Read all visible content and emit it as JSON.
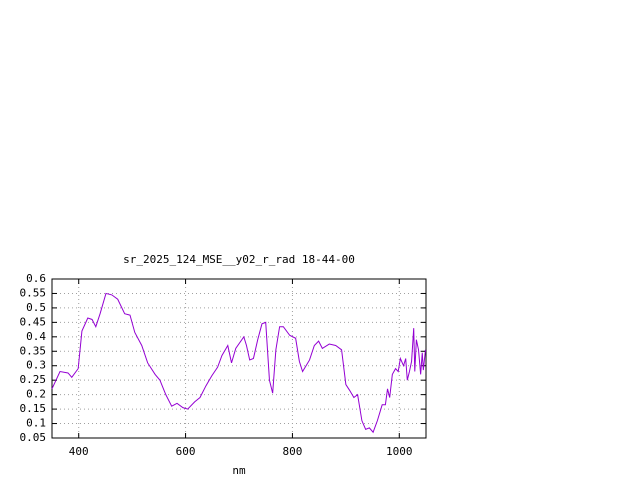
{
  "chart_data": {
    "type": "line",
    "title": "sr_2025_124_MSE__y02_r_rad 18-44-00",
    "x_label": "nm",
    "color": "#9400d3",
    "grid": true,
    "xlim": [
      350,
      1050
    ],
    "xticks": [
      400,
      600,
      800,
      1000
    ],
    "ylim": [
      0.05,
      0.6
    ],
    "yticks": [
      0.6,
      0.55,
      0.5,
      0.45,
      0.4,
      0.35,
      0.3,
      0.25,
      0.2,
      0.15,
      0.1,
      0.05
    ],
    "x": [
      350,
      365,
      380,
      387,
      399,
      406,
      417,
      425,
      432,
      440,
      451,
      462,
      473,
      486,
      496,
      505,
      518,
      529,
      543,
      552,
      563,
      574,
      584,
      595,
      604,
      617,
      627,
      638,
      649,
      660,
      668,
      679,
      686,
      694,
      709,
      714,
      720,
      727,
      735,
      743,
      750,
      757,
      763,
      769,
      776,
      783,
      795,
      806,
      813,
      819,
      832,
      841,
      849,
      856,
      869,
      881,
      892,
      900,
      907,
      915,
      922,
      930,
      937,
      944,
      951,
      959,
      968,
      974,
      978,
      982,
      987,
      993,
      998,
      1002,
      1008,
      1012,
      1015,
      1019,
      1023,
      1027,
      1029,
      1032,
      1036,
      1040,
      1043,
      1045,
      1049
    ],
    "values": [
      0.22,
      0.28,
      0.275,
      0.26,
      0.29,
      0.42,
      0.465,
      0.46,
      0.435,
      0.48,
      0.55,
      0.545,
      0.53,
      0.48,
      0.475,
      0.415,
      0.37,
      0.31,
      0.27,
      0.25,
      0.2,
      0.16,
      0.17,
      0.155,
      0.15,
      0.175,
      0.19,
      0.23,
      0.265,
      0.295,
      0.335,
      0.37,
      0.31,
      0.36,
      0.4,
      0.37,
      0.32,
      0.325,
      0.39,
      0.445,
      0.45,
      0.25,
      0.205,
      0.355,
      0.435,
      0.435,
      0.405,
      0.395,
      0.315,
      0.28,
      0.32,
      0.37,
      0.385,
      0.36,
      0.375,
      0.37,
      0.355,
      0.235,
      0.215,
      0.19,
      0.2,
      0.11,
      0.08,
      0.085,
      0.07,
      0.11,
      0.165,
      0.165,
      0.22,
      0.19,
      0.27,
      0.29,
      0.28,
      0.325,
      0.3,
      0.325,
      0.25,
      0.28,
      0.315,
      0.43,
      0.28,
      0.39,
      0.355,
      0.27,
      0.345,
      0.285,
      0.355
    ]
  }
}
